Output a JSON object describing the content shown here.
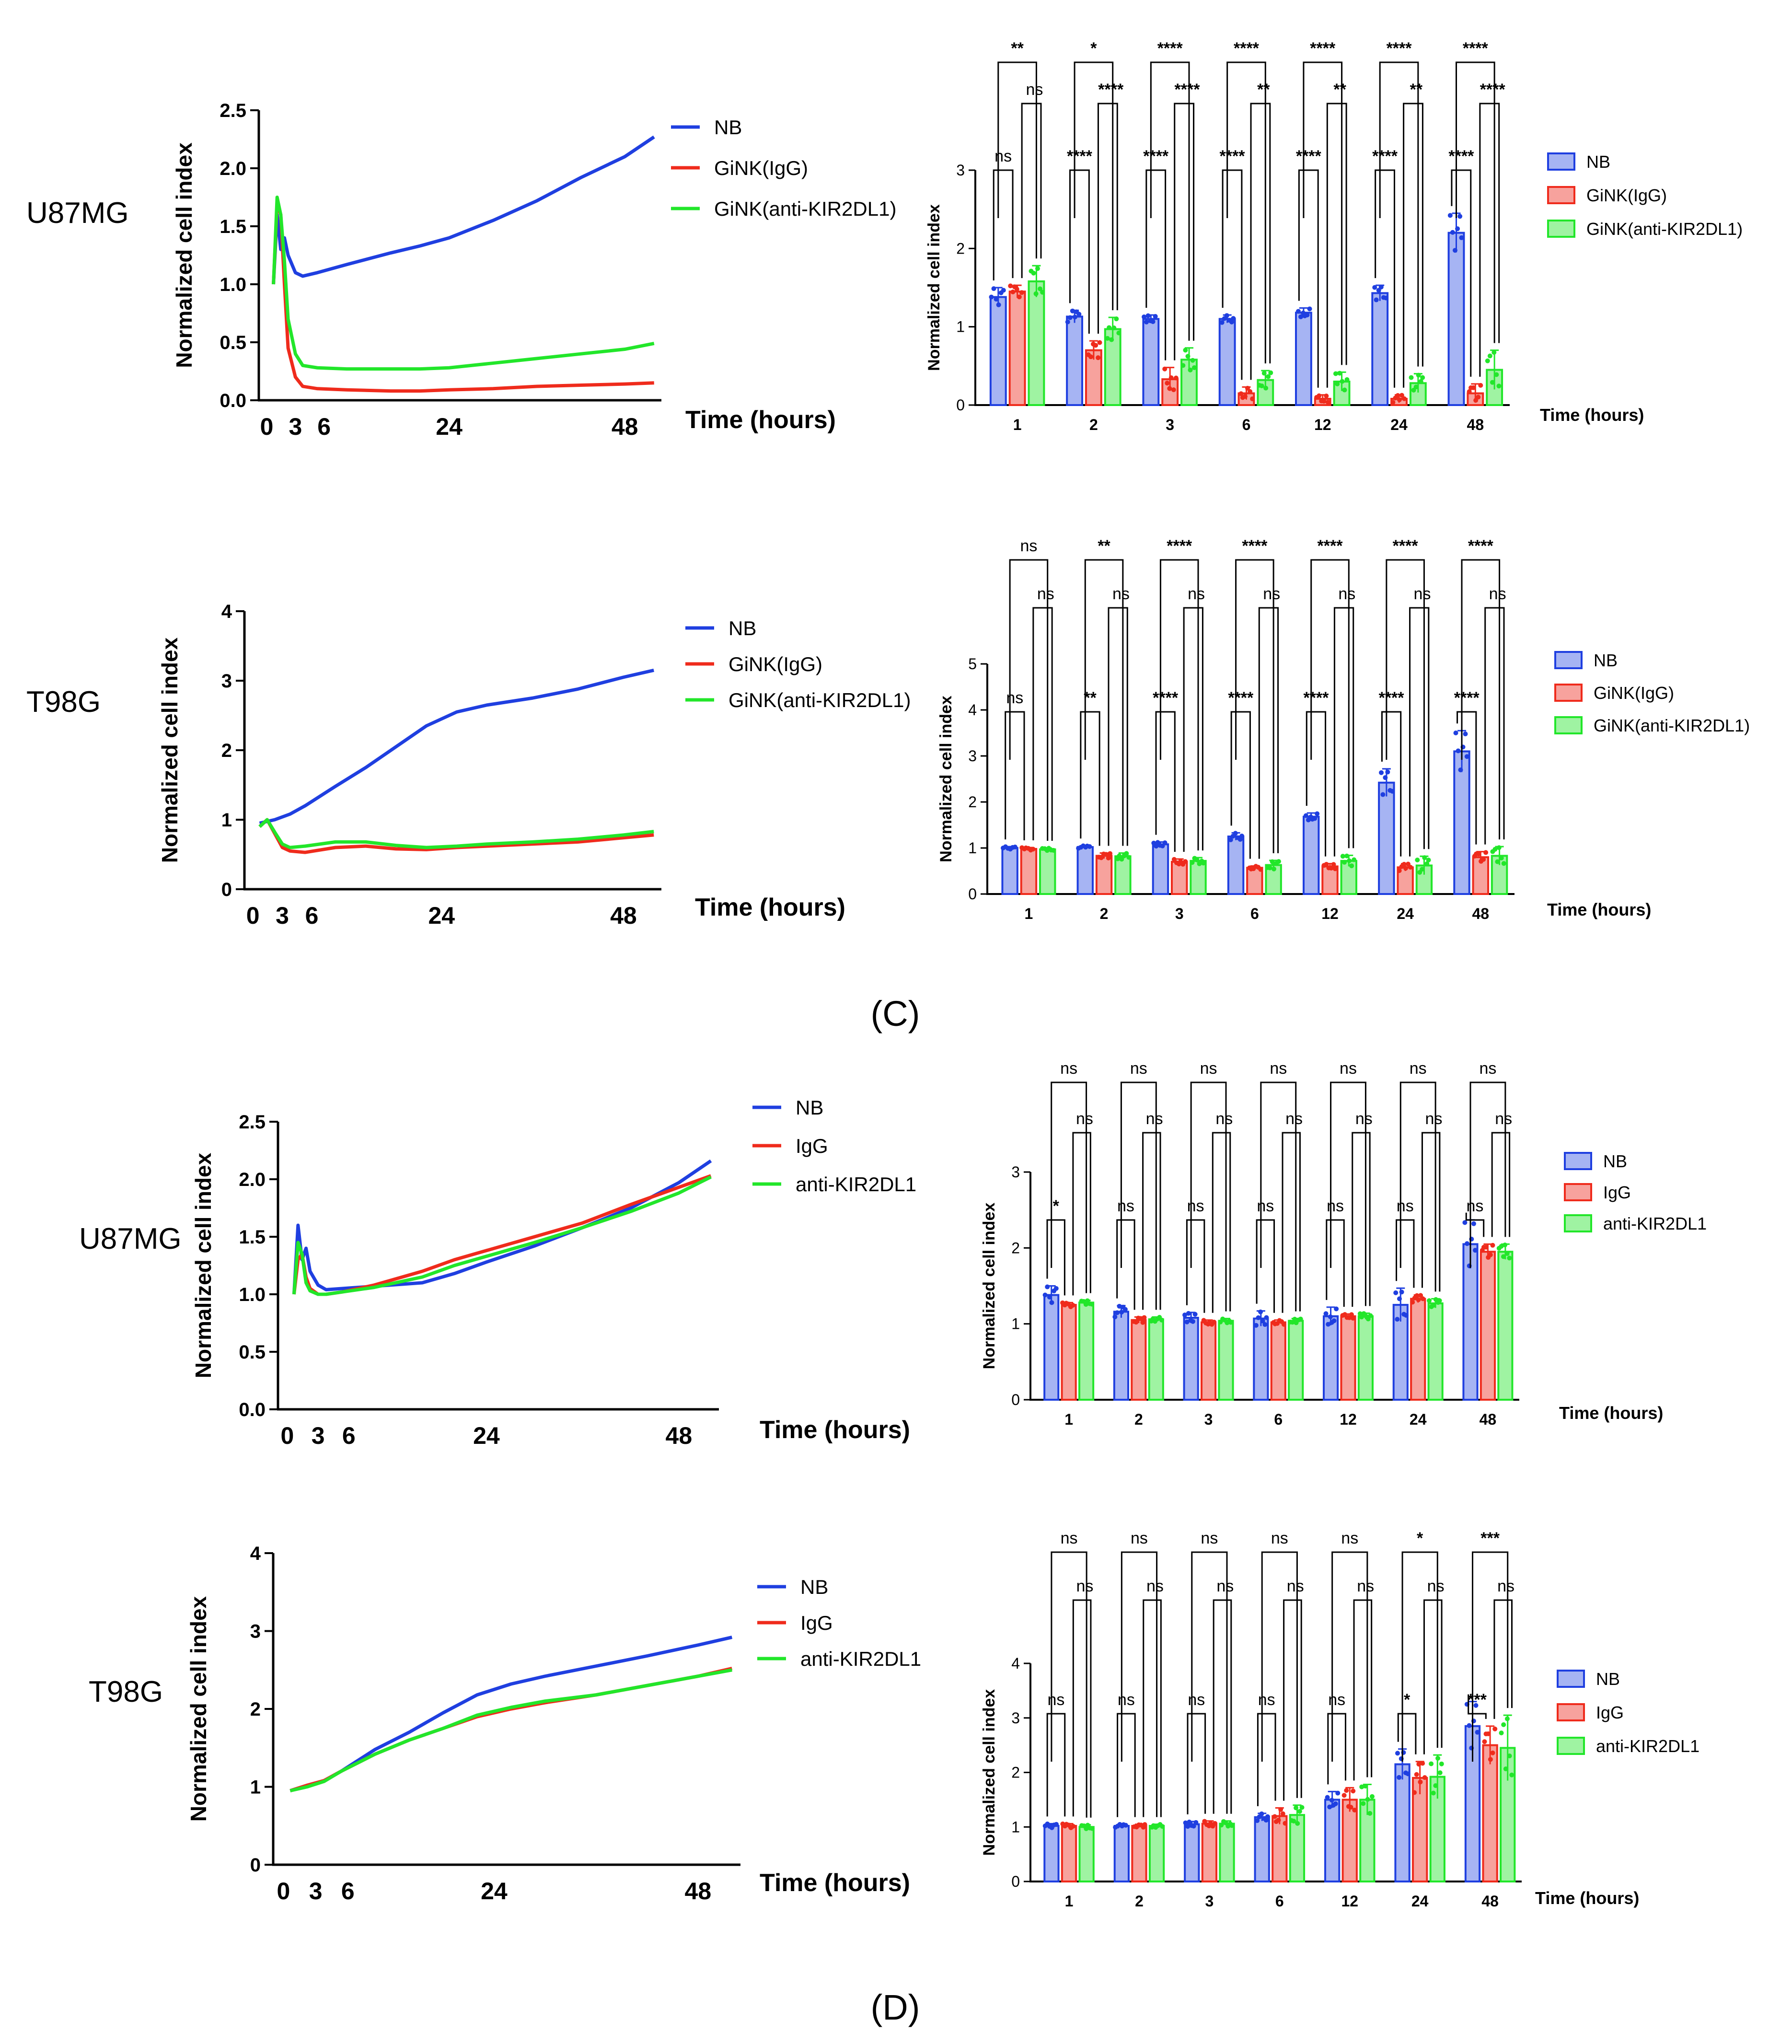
{
  "figure": {
    "panel_c_label": "(C)",
    "panel_d_label": "(D)"
  },
  "colors": {
    "NB": "#1f3fe0",
    "GiNK": "#ef2b1c",
    "anti": "#22e62a",
    "NB_fill": "#a6b4f3",
    "GiNK_fill": "#f7a29d",
    "anti_fill": "#9ff3a2"
  },
  "chart_data": [
    {
      "id": "C_U87MG_line",
      "type": "line",
      "row_label": "U87MG",
      "xlabel": "Time (hours)",
      "ylabel": "Normalized cell index",
      "xlim": [
        -2,
        53
      ],
      "ylim": [
        0,
        2.5
      ],
      "yticks": [
        "0.0",
        "0.5",
        "1.0",
        "1.5",
        "2.0",
        "2.5"
      ],
      "ytick_values": [
        0,
        0.5,
        1,
        1.5,
        2,
        2.5
      ],
      "xticks": [
        "0",
        "3",
        "6",
        "24",
        "48"
      ],
      "xtick_values": [
        0,
        3,
        6,
        24,
        48
      ],
      "series": [
        {
          "name": "NB",
          "color_key": "NB",
          "x": [
            0,
            0.5,
            1,
            1.5,
            2,
            3,
            4,
            6,
            10,
            16,
            20,
            24,
            30,
            36,
            42,
            48,
            52
          ],
          "y": [
            1.0,
            1.6,
            1.3,
            1.4,
            1.25,
            1.1,
            1.07,
            1.1,
            1.17,
            1.27,
            1.33,
            1.4,
            1.55,
            1.72,
            1.92,
            2.1,
            2.27
          ]
        },
        {
          "name": "GiNK(IgG)",
          "color_key": "GiNK",
          "x": [
            0,
            0.5,
            1,
            1.5,
            2,
            3,
            4,
            6,
            10,
            16,
            20,
            24,
            30,
            36,
            42,
            48,
            52
          ],
          "y": [
            1.0,
            1.7,
            1.6,
            1.0,
            0.45,
            0.2,
            0.12,
            0.1,
            0.09,
            0.08,
            0.08,
            0.09,
            0.1,
            0.12,
            0.13,
            0.14,
            0.15
          ]
        },
        {
          "name": "GiNK(anti-KIR2DL1)",
          "color_key": "anti",
          "x": [
            0,
            0.5,
            1,
            1.5,
            2,
            3,
            4,
            6,
            10,
            16,
            20,
            24,
            30,
            36,
            42,
            48,
            52
          ],
          "y": [
            1.0,
            1.75,
            1.6,
            1.2,
            0.7,
            0.4,
            0.3,
            0.28,
            0.27,
            0.27,
            0.27,
            0.28,
            0.32,
            0.36,
            0.4,
            0.44,
            0.49
          ]
        }
      ]
    },
    {
      "id": "C_T98G_line",
      "type": "line",
      "row_label": "T98G",
      "xlabel": "Time (hours)",
      "ylabel": "Normalized cell index",
      "xlim": [
        -2,
        53
      ],
      "ylim": [
        0,
        4
      ],
      "yticks": [
        "0",
        "1",
        "2",
        "3",
        "4"
      ],
      "ytick_values": [
        0,
        1,
        2,
        3,
        4
      ],
      "xticks": [
        "0",
        "3",
        "6",
        "24",
        "48"
      ],
      "xtick_values": [
        0,
        3,
        6,
        24,
        48
      ],
      "series": [
        {
          "name": "NB",
          "color_key": "NB",
          "x": [
            0,
            2,
            4,
            6,
            10,
            14,
            18,
            22,
            26,
            30,
            36,
            42,
            48,
            52
          ],
          "y": [
            0.95,
            1.0,
            1.08,
            1.2,
            1.48,
            1.75,
            2.05,
            2.35,
            2.55,
            2.65,
            2.75,
            2.88,
            3.05,
            3.15
          ]
        },
        {
          "name": "GiNK(IgG)",
          "color_key": "GiNK",
          "x": [
            0,
            1,
            2,
            3,
            4,
            6,
            10,
            14,
            18,
            22,
            26,
            30,
            36,
            42,
            48,
            52
          ],
          "y": [
            0.9,
            1.0,
            0.8,
            0.6,
            0.55,
            0.53,
            0.6,
            0.62,
            0.58,
            0.57,
            0.6,
            0.62,
            0.65,
            0.68,
            0.74,
            0.78
          ]
        },
        {
          "name": "GiNK(anti-KIR2DL1)",
          "color_key": "anti",
          "x": [
            0,
            1,
            2,
            3,
            4,
            6,
            10,
            14,
            18,
            22,
            26,
            30,
            36,
            42,
            48,
            52
          ],
          "y": [
            0.9,
            1.0,
            0.82,
            0.65,
            0.6,
            0.62,
            0.68,
            0.68,
            0.63,
            0.6,
            0.62,
            0.65,
            0.68,
            0.72,
            0.78,
            0.83
          ]
        }
      ]
    },
    {
      "id": "C_U87MG_bar",
      "type": "bar",
      "xlabel": "Time (hours)",
      "ylabel": "Normalized cell index",
      "ylim": [
        0,
        3
      ],
      "ytick_values": [
        0,
        1,
        2,
        3
      ],
      "yticks": [
        "0",
        "1",
        "2",
        "3"
      ],
      "categories": [
        "1",
        "2",
        "3",
        "6",
        "12",
        "24",
        "48"
      ],
      "series": [
        {
          "name": "NB",
          "color_key": "NB",
          "values": [
            1.38,
            1.13,
            1.1,
            1.1,
            1.18,
            1.43,
            2.2
          ],
          "errors": [
            0.12,
            0.08,
            0.05,
            0.05,
            0.06,
            0.1,
            0.25
          ]
        },
        {
          "name": "GiNK(IgG)",
          "color_key": "GiNK",
          "values": [
            1.45,
            0.7,
            0.33,
            0.15,
            0.08,
            0.08,
            0.15
          ],
          "errors": [
            0.08,
            0.12,
            0.15,
            0.08,
            0.05,
            0.05,
            0.12
          ]
        },
        {
          "name": "GiNK(anti-KIR2DL1)",
          "color_key": "anti",
          "values": [
            1.58,
            0.97,
            0.58,
            0.32,
            0.3,
            0.28,
            0.45
          ],
          "errors": [
            0.2,
            0.15,
            0.15,
            0.12,
            0.12,
            0.12,
            0.25
          ]
        }
      ],
      "sig_top": [
        "**",
        "*",
        "****",
        "****",
        "****",
        "****",
        "****"
      ],
      "sig_inner": [
        "ns",
        "****",
        "****",
        "**",
        "**",
        "**",
        "****"
      ],
      "sig_left": [
        "ns",
        "****",
        "****",
        "****",
        "****",
        "****",
        "****"
      ]
    },
    {
      "id": "C_T98G_bar",
      "type": "bar",
      "xlabel": "Time (hours)",
      "ylabel": "Normalized cell index",
      "ylim": [
        0,
        5
      ],
      "ytick_values": [
        0,
        1,
        2,
        3,
        4,
        5
      ],
      "yticks": [
        "0",
        "1",
        "2",
        "3",
        "4",
        "5"
      ],
      "categories": [
        "1",
        "2",
        "3",
        "6",
        "12",
        "24",
        "48"
      ],
      "series": [
        {
          "name": "NB",
          "color_key": "NB",
          "values": [
            1.0,
            1.02,
            1.08,
            1.25,
            1.68,
            2.42,
            3.1
          ],
          "errors": [
            0.03,
            0.03,
            0.05,
            0.08,
            0.08,
            0.3,
            0.45
          ]
        },
        {
          "name": "GiNK(IgG)",
          "color_key": "GiNK",
          "values": [
            0.98,
            0.83,
            0.7,
            0.57,
            0.6,
            0.58,
            0.8
          ],
          "errors": [
            0.03,
            0.06,
            0.06,
            0.04,
            0.06,
            0.08,
            0.12
          ]
        },
        {
          "name": "GiNK(anti-KIR2DL1)",
          "color_key": "anti",
          "values": [
            0.97,
            0.82,
            0.72,
            0.63,
            0.72,
            0.62,
            0.83
          ],
          "errors": [
            0.03,
            0.07,
            0.07,
            0.1,
            0.12,
            0.2,
            0.2
          ]
        }
      ],
      "sig_top": [
        "ns",
        "**",
        "****",
        "****",
        "****",
        "****",
        "****"
      ],
      "sig_inner": [
        "ns",
        "ns",
        "ns",
        "ns",
        "ns",
        "ns",
        "ns"
      ],
      "sig_left": [
        "ns",
        "**",
        "****",
        "****",
        "****",
        "****",
        "****"
      ]
    },
    {
      "id": "D_U87MG_line",
      "type": "line",
      "row_label": "U87MG",
      "xlabel": "Time (hours)",
      "ylabel": "Normalized cell index",
      "xlim": [
        -2,
        53
      ],
      "ylim": [
        0,
        2.5
      ],
      "yticks": [
        "0.0",
        "0.5",
        "1.0",
        "1.5",
        "2.0",
        "2.5"
      ],
      "ytick_values": [
        0,
        0.5,
        1,
        1.5,
        2,
        2.5
      ],
      "xticks": [
        "0",
        "3",
        "6",
        "24",
        "48"
      ],
      "xtick_values": [
        0,
        3,
        6,
        24,
        48
      ],
      "series": [
        {
          "name": "NB",
          "color_key": "NB",
          "x": [
            0,
            0.5,
            1,
            1.5,
            2,
            3,
            4,
            6,
            10,
            16,
            20,
            24,
            30,
            36,
            42,
            48,
            52
          ],
          "y": [
            1.0,
            1.6,
            1.3,
            1.4,
            1.2,
            1.08,
            1.04,
            1.05,
            1.07,
            1.1,
            1.18,
            1.28,
            1.42,
            1.58,
            1.75,
            1.97,
            2.16
          ]
        },
        {
          "name": "IgG",
          "color_key": "GiNK",
          "x": [
            0,
            0.5,
            1,
            1.5,
            2,
            3,
            4,
            6,
            10,
            16,
            20,
            24,
            30,
            36,
            42,
            48,
            52
          ],
          "y": [
            1.0,
            1.3,
            1.35,
            1.15,
            1.05,
            1.0,
            1.0,
            1.02,
            1.08,
            1.2,
            1.3,
            1.38,
            1.5,
            1.62,
            1.78,
            1.93,
            2.03
          ]
        },
        {
          "name": "anti-KIR2DL1",
          "color_key": "anti",
          "x": [
            0,
            0.5,
            1,
            1.5,
            2,
            3,
            4,
            6,
            10,
            16,
            20,
            24,
            30,
            36,
            42,
            48,
            52
          ],
          "y": [
            1.0,
            1.45,
            1.35,
            1.1,
            1.03,
            1.0,
            1.0,
            1.02,
            1.06,
            1.15,
            1.25,
            1.33,
            1.45,
            1.58,
            1.72,
            1.88,
            2.02
          ]
        }
      ]
    },
    {
      "id": "D_T98G_line",
      "type": "line",
      "row_label": "T98G",
      "xlabel": "Time (hours)",
      "ylabel": "Normalized cell index",
      "xlim": [
        -2,
        53
      ],
      "ylim": [
        0,
        4
      ],
      "yticks": [
        "0",
        "1",
        "2",
        "3",
        "4"
      ],
      "ytick_values": [
        0,
        1,
        2,
        3,
        4
      ],
      "xticks": [
        "0",
        "3",
        "6",
        "24",
        "48"
      ],
      "xtick_values": [
        0,
        3,
        6,
        24,
        48
      ],
      "series": [
        {
          "name": "NB",
          "color_key": "NB",
          "x": [
            0,
            2,
            4,
            6,
            10,
            14,
            18,
            22,
            26,
            30,
            36,
            42,
            48,
            52
          ],
          "y": [
            0.95,
            1.02,
            1.08,
            1.2,
            1.48,
            1.7,
            1.95,
            2.18,
            2.32,
            2.42,
            2.55,
            2.68,
            2.82,
            2.92
          ]
        },
        {
          "name": "IgG",
          "color_key": "GiNK",
          "x": [
            0,
            2,
            4,
            6,
            10,
            14,
            18,
            22,
            26,
            30,
            36,
            42,
            48,
            52
          ],
          "y": [
            0.95,
            1.02,
            1.08,
            1.2,
            1.42,
            1.6,
            1.75,
            1.9,
            2.0,
            2.08,
            2.18,
            2.3,
            2.42,
            2.52
          ]
        },
        {
          "name": "anti-KIR2DL1",
          "color_key": "anti",
          "x": [
            0,
            2,
            4,
            6,
            10,
            14,
            18,
            22,
            26,
            30,
            36,
            42,
            48,
            52
          ],
          "y": [
            0.95,
            1.0,
            1.07,
            1.2,
            1.42,
            1.6,
            1.75,
            1.92,
            2.02,
            2.1,
            2.18,
            2.3,
            2.42,
            2.5
          ]
        }
      ]
    },
    {
      "id": "D_U87MG_bar",
      "type": "bar",
      "xlabel": "Time (hours)",
      "ylabel": "Normalized cell index",
      "ylim": [
        0,
        3
      ],
      "ytick_values": [
        0,
        1,
        2,
        3
      ],
      "yticks": [
        "0",
        "1",
        "2",
        "3"
      ],
      "categories": [
        "1",
        "2",
        "3",
        "6",
        "12",
        "24",
        "48"
      ],
      "series": [
        {
          "name": "NB",
          "color_key": "NB",
          "values": [
            1.38,
            1.16,
            1.08,
            1.07,
            1.1,
            1.25,
            2.05
          ],
          "errors": [
            0.12,
            0.08,
            0.07,
            0.1,
            0.12,
            0.22,
            0.32
          ]
        },
        {
          "name": "IgG",
          "color_key": "GiNK",
          "values": [
            1.25,
            1.05,
            1.02,
            1.02,
            1.1,
            1.33,
            1.95
          ],
          "errors": [
            0.03,
            0.04,
            0.03,
            0.03,
            0.03,
            0.05,
            0.1
          ]
        },
        {
          "name": "anti-KIR2DL1",
          "color_key": "anti",
          "values": [
            1.28,
            1.06,
            1.04,
            1.04,
            1.1,
            1.27,
            1.95
          ],
          "errors": [
            0.03,
            0.03,
            0.03,
            0.03,
            0.04,
            0.06,
            0.1
          ]
        }
      ],
      "sig_top": [
        "ns",
        "ns",
        "ns",
        "ns",
        "ns",
        "ns",
        "ns"
      ],
      "sig_inner": [
        "ns",
        "ns",
        "ns",
        "ns",
        "ns",
        "ns",
        "ns"
      ],
      "sig_left": [
        "*",
        "ns",
        "ns",
        "ns",
        "ns",
        "ns",
        "ns"
      ]
    },
    {
      "id": "D_T98G_bar",
      "type": "bar",
      "xlabel": "Time (hours)",
      "ylabel": "Normalized cell index",
      "ylim": [
        0,
        4
      ],
      "ytick_values": [
        0,
        1,
        2,
        3,
        4
      ],
      "yticks": [
        "0",
        "1",
        "2",
        "3",
        "4"
      ],
      "categories": [
        "1",
        "2",
        "3",
        "6",
        "12",
        "24",
        "48"
      ],
      "series": [
        {
          "name": "NB",
          "color_key": "NB",
          "values": [
            1.02,
            1.02,
            1.05,
            1.18,
            1.5,
            2.15,
            2.85
          ],
          "errors": [
            0.04,
            0.03,
            0.05,
            0.07,
            0.15,
            0.28,
            0.45
          ]
        },
        {
          "name": "IgG",
          "color_key": "GiNK",
          "values": [
            1.02,
            1.02,
            1.06,
            1.2,
            1.5,
            1.9,
            2.5
          ],
          "errors": [
            0.04,
            0.03,
            0.05,
            0.15,
            0.22,
            0.3,
            0.35
          ]
        },
        {
          "name": "anti-KIR2DL1",
          "color_key": "anti",
          "values": [
            1.0,
            1.02,
            1.06,
            1.22,
            1.5,
            1.92,
            2.45
          ],
          "errors": [
            0.04,
            0.03,
            0.05,
            0.18,
            0.28,
            0.4,
            0.6
          ]
        }
      ],
      "sig_top": [
        "ns",
        "ns",
        "ns",
        "ns",
        "ns",
        "*",
        "***"
      ],
      "sig_inner": [
        "ns",
        "ns",
        "ns",
        "ns",
        "ns",
        "ns",
        "ns"
      ],
      "sig_left": [
        "ns",
        "ns",
        "ns",
        "ns",
        "ns",
        "*",
        "***"
      ]
    }
  ]
}
